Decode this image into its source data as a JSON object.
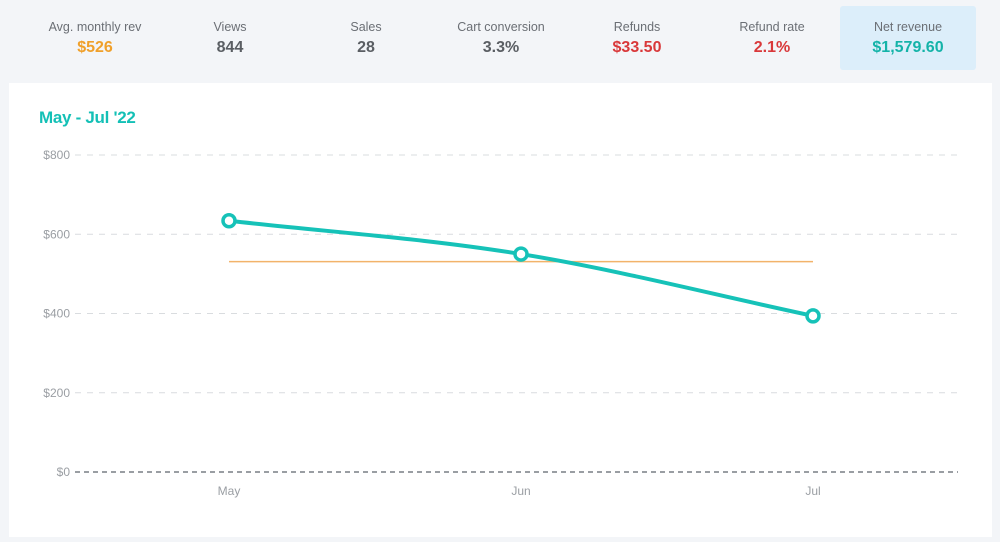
{
  "stats": [
    {
      "label": "Avg. monthly rev",
      "value": "$526",
      "color": "#f0a02a"
    },
    {
      "label": "Views",
      "value": "844",
      "color": "#5a5e63"
    },
    {
      "label": "Sales",
      "value": "28",
      "color": "#5a5e63"
    },
    {
      "label": "Cart conversion",
      "value": "3.3%",
      "color": "#5a5e63"
    },
    {
      "label": "Refunds",
      "value": "$33.50",
      "color": "#d9383a"
    },
    {
      "label": "Refund rate",
      "value": "2.1%",
      "color": "#d9383a"
    },
    {
      "label": "Net revenue",
      "value": "$1,579.60",
      "color": "#14b3a8",
      "selected": true
    }
  ],
  "chart_title": "May - Jul '22",
  "chart_data": {
    "type": "line",
    "title": "May - Jul '22",
    "categories": [
      "May",
      "Jun",
      "Jul"
    ],
    "series": [
      {
        "values": [
          634,
          550,
          394
        ],
        "color": "#16c2b8"
      }
    ],
    "reference_line": {
      "value": 531,
      "color": "#f2b36a"
    },
    "ylim": [
      0,
      800
    ],
    "y_ticks": [
      0,
      200,
      400,
      600,
      800
    ],
    "y_tick_labels": [
      "$0",
      "$200",
      "$400",
      "$600",
      "$800"
    ],
    "grid": true,
    "xlabel": "",
    "ylabel": ""
  }
}
